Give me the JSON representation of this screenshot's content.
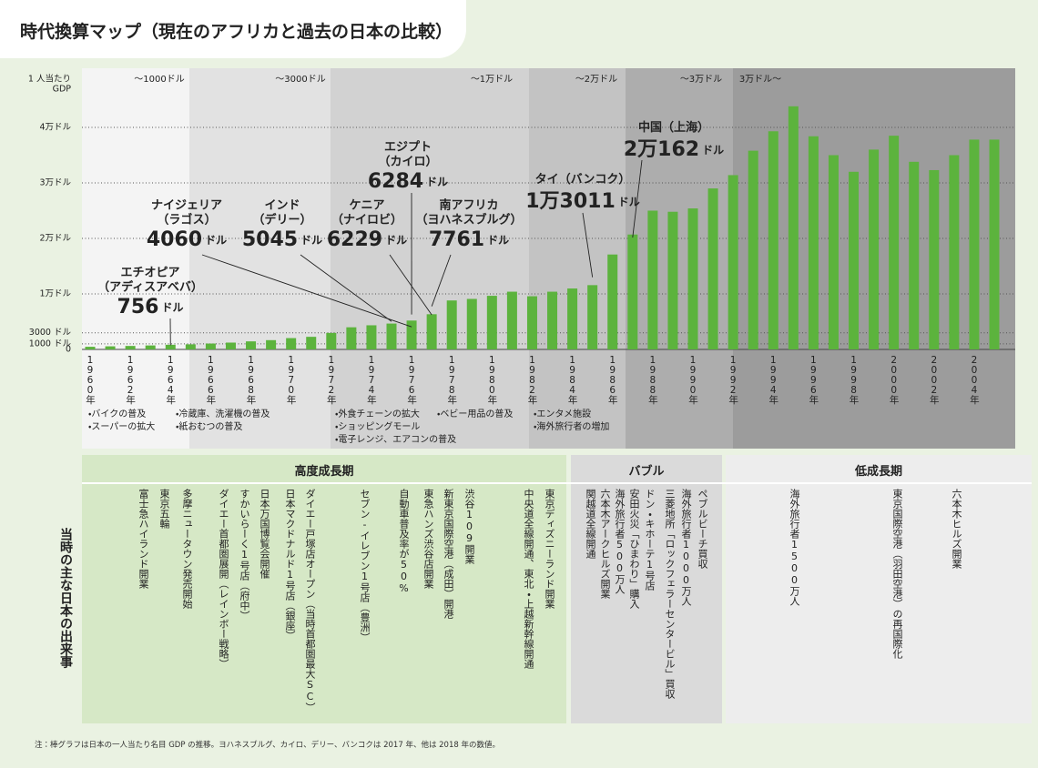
{
  "chart_data": {
    "type": "bar",
    "title": "時代換算マップ（現在のアフリカと過去の日本の比較）",
    "ylabel": [
      "1 人当たり",
      "GDP"
    ],
    "categories": [
      "1960年",
      null,
      "1962年",
      null,
      "1964年",
      null,
      "1966年",
      null,
      "1968年",
      null,
      "1970年",
      null,
      "1972年",
      null,
      "1974年",
      null,
      "1976年",
      null,
      "1978年",
      null,
      "1980年",
      null,
      "1982年",
      null,
      "1984年",
      null,
      "1986年",
      null,
      "1988年",
      null,
      "1990年",
      null,
      "1992年",
      null,
      "1994年",
      null,
      "1996年",
      null,
      "1998年",
      null,
      "2000年",
      null,
      "2002年",
      null,
      "2004年",
      null
    ],
    "values": [
      480,
      560,
      630,
      720,
      840,
      920,
      1060,
      1230,
      1450,
      1670,
      2040,
      2270,
      2970,
      3990,
      4350,
      4660,
      5200,
      6340,
      8820,
      9100,
      9660,
      10400,
      9580,
      10400,
      10980,
      11580,
      17100,
      20700,
      25000,
      24800,
      25400,
      29000,
      31400,
      35800,
      39300,
      43800,
      38400,
      35000,
      32000,
      36000,
      38500,
      33800,
      32300,
      35000,
      37800,
      37800
    ],
    "color": "#5cb33d",
    "ylim": [
      0,
      50000
    ],
    "yticks": [
      0,
      {
        "value": 1000,
        "label": "1000 ドル"
      },
      {
        "value": 3000,
        "label": "3000 ドル"
      },
      {
        "value": 10000,
        "label": "1万ドル"
      },
      {
        "value": 20000,
        "label": "2万ドル"
      },
      {
        "value": 30000,
        "label": "3万ドル"
      },
      {
        "value": 40000,
        "label": "4万ドル"
      }
    ],
    "grid": true,
    "bands": [
      "～1000ドル",
      "～3000ドル",
      "～1万ドル",
      "～2万ドル",
      "～3万ドル",
      "3万ドル～"
    ],
    "annotations": [
      {
        "country": "エチオピア",
        "city": "（アディスアベバ）",
        "value": 756,
        "value_label": "756",
        "unit": "ドル"
      },
      {
        "country": "ナイジェリア",
        "city": "（ラゴス）",
        "value": 4060,
        "value_label": "4060",
        "unit": "ドル"
      },
      {
        "country": "インド",
        "city": "（デリー）",
        "value": 5045,
        "value_label": "5045",
        "unit": "ドル"
      },
      {
        "country": "ケニア",
        "city": "（ナイロビ）",
        "value": 6229,
        "value_label": "6229",
        "unit": "ドル"
      },
      {
        "country": "エジプト",
        "city": "（カイロ）",
        "value": 6284,
        "value_label": "6284",
        "unit": "ドル"
      },
      {
        "country": "南アフリカ",
        "city": "（ヨハネスブルグ）",
        "value": 7761,
        "value_label": "7761",
        "unit": "ドル"
      },
      {
        "country": "タイ",
        "city": "（バンコク）",
        "value": 13011,
        "value_label": "1万3011",
        "unit": "ドル"
      },
      {
        "country": "中国",
        "city": "（上海）",
        "value": 20162,
        "value_label": "2万162",
        "unit": "ドル"
      }
    ]
  },
  "trends": [
    [
      "・バイクの普及",
      "・スーパーの拡大"
    ],
    [
      "・冷蔵庫、洗濯機の普及",
      "・紙おむつの普及"
    ],
    [
      "・外食チェーンの拡大",
      "・ショッピングモール",
      "・電子レンジ、エアコンの普及"
    ],
    [
      "・ベビー用品の普及"
    ],
    [
      "・エンタメ施設",
      "・海外旅行者の増加"
    ]
  ],
  "events_label": "当時の主な日本の出来事",
  "eras": [
    {
      "name": "高度成長期",
      "events": [
        "富士急ハイランド開業",
        "東京五輪",
        "多摩ニュータウン発売開始",
        "ダイエー首都圏展開（レインボー戦略）",
        "すかいらーく1号店（府中）",
        "日本万国博覧会開催",
        "日本マクドナルド1号店（銀座）",
        "ダイエー戸塚店オープン（当時首都圏最大SC）",
        "セブン-イレブン1号店（豊洲）",
        "自動車普及率が50%",
        "東急ハンズ渋谷店開業",
        "新東京国際空港（成田）開港",
        "渋谷109開業",
        "中央道全線開通、東北・上越新幹線開通",
        "東京ディズニーランド開業"
      ]
    },
    {
      "name": "バブル",
      "events": [
        "関越道全線開通",
        "六本木アークヒルズ開業",
        "海外旅行者500万人",
        "安田火災「ひまわり」購入",
        "ドン・キホーテ1号店",
        "三菱地所「ロックフェラーセンタービル」買収",
        "海外旅行者1000万人",
        "ペブルビーチ買収"
      ]
    },
    {
      "name": "低成長期",
      "events": [
        "海外旅行者1500万人",
        "東京国際空港（羽田空港）の再国際化",
        "六本木ヒルズ開業"
      ]
    }
  ],
  "note": "注：棒グラフは日本の一人当たり名目 GDP の推移。ヨハネスブルグ、カイロ、デリー、バンコクは 2017 年、他は 2018 年の数値。"
}
